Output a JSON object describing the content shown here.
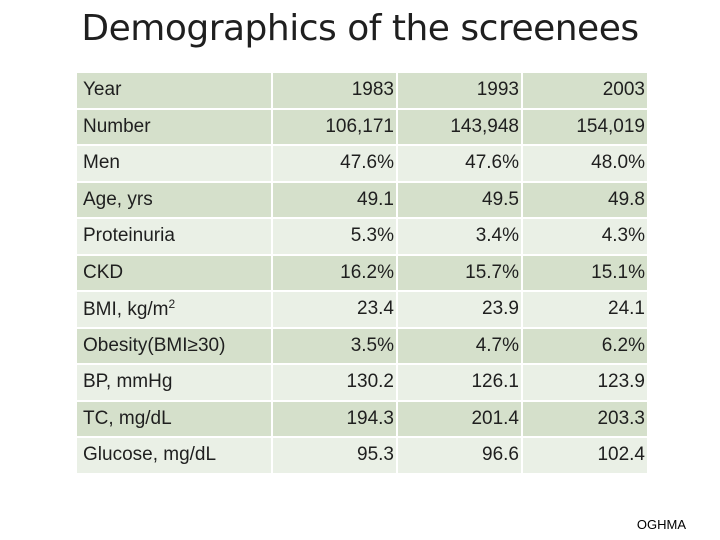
{
  "title": "Demographics of the screenees",
  "footer": "OGHMA",
  "table": {
    "rows": [
      {
        "label": "Year",
        "values": [
          "1983",
          "1993",
          "2003"
        ]
      },
      {
        "label": "Number",
        "values": [
          "106,171",
          "143,948",
          "154,019"
        ]
      },
      {
        "label": "Men",
        "values": [
          "47.6%",
          "47.6%",
          "48.0%"
        ]
      },
      {
        "label": "Age, yrs",
        "values": [
          "49.1",
          "49.5",
          "49.8"
        ]
      },
      {
        "label": "Proteinuria",
        "values": [
          "5.3%",
          "3.4%",
          "4.3%"
        ]
      },
      {
        "label": "CKD",
        "values": [
          "16.2%",
          "15.7%",
          "15.1%"
        ]
      },
      {
        "label": "BMI, kg/m",
        "label_sup": "2",
        "values": [
          "23.4",
          "23.9",
          "24.1"
        ]
      },
      {
        "label": "Obesity(BMI≥30)",
        "values": [
          "3.5%",
          "4.7%",
          "6.2%"
        ]
      },
      {
        "label": "BP, mmHg",
        "values": [
          "130.2",
          "126.1",
          "123.9"
        ]
      },
      {
        "label": "TC, mg/dL",
        "values": [
          "194.3",
          "201.4",
          "203.3"
        ]
      },
      {
        "label": "Glucose, mg/dL",
        "values": [
          "95.3",
          "96.6",
          "102.4"
        ]
      }
    ]
  }
}
